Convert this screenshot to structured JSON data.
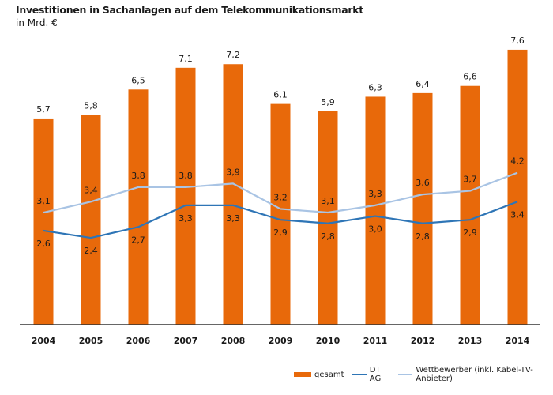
{
  "chart_data": {
    "type": "bar",
    "title": "Investitionen in Sachanlagen auf dem Telekommunikationsmarkt",
    "subtitle": "in Mrd. €",
    "xlabel": "",
    "ylabel": "",
    "ylim": [
      0,
      9
    ],
    "grid": false,
    "legend_position": "bottom-right",
    "categories": [
      "2004",
      "2005",
      "2006",
      "2007",
      "2008",
      "2009",
      "2010",
      "2011",
      "2012",
      "2013",
      "2014"
    ],
    "series": [
      {
        "name": "gesamt",
        "type": "bar",
        "color": "#e8690a",
        "values": [
          5.7,
          5.8,
          6.5,
          7.1,
          7.2,
          6.1,
          5.9,
          6.3,
          6.4,
          6.6,
          7.6
        ],
        "labels": [
          "5,7",
          "5,8",
          "6,5",
          "7,1",
          "7,2",
          "6,1",
          "5,9",
          "6,3",
          "6,4",
          "6,6",
          "7,6"
        ]
      },
      {
        "name": "DT AG",
        "type": "line",
        "color": "#2e75b6",
        "values": [
          2.6,
          2.4,
          2.7,
          3.3,
          3.3,
          2.9,
          2.8,
          3.0,
          2.8,
          2.9,
          3.4
        ],
        "labels": [
          "2,6",
          "2,4",
          "2,7",
          "3,3",
          "3,3",
          "2,9",
          "2,8",
          "3,0",
          "2,8",
          "2,9",
          "3,4"
        ]
      },
      {
        "name": "Wettbewerber (inkl. Kabel-TV-Anbieter)",
        "type": "line",
        "color": "#a9c4e4",
        "values": [
          3.1,
          3.4,
          3.8,
          3.8,
          3.9,
          3.2,
          3.1,
          3.3,
          3.6,
          3.7,
          4.2
        ],
        "labels": [
          "3,1",
          "3,4",
          "3,8",
          "3,8",
          "3,9",
          "3,2",
          "3,1",
          "3,3",
          "3,6",
          "3,7",
          "4,2"
        ]
      }
    ]
  }
}
